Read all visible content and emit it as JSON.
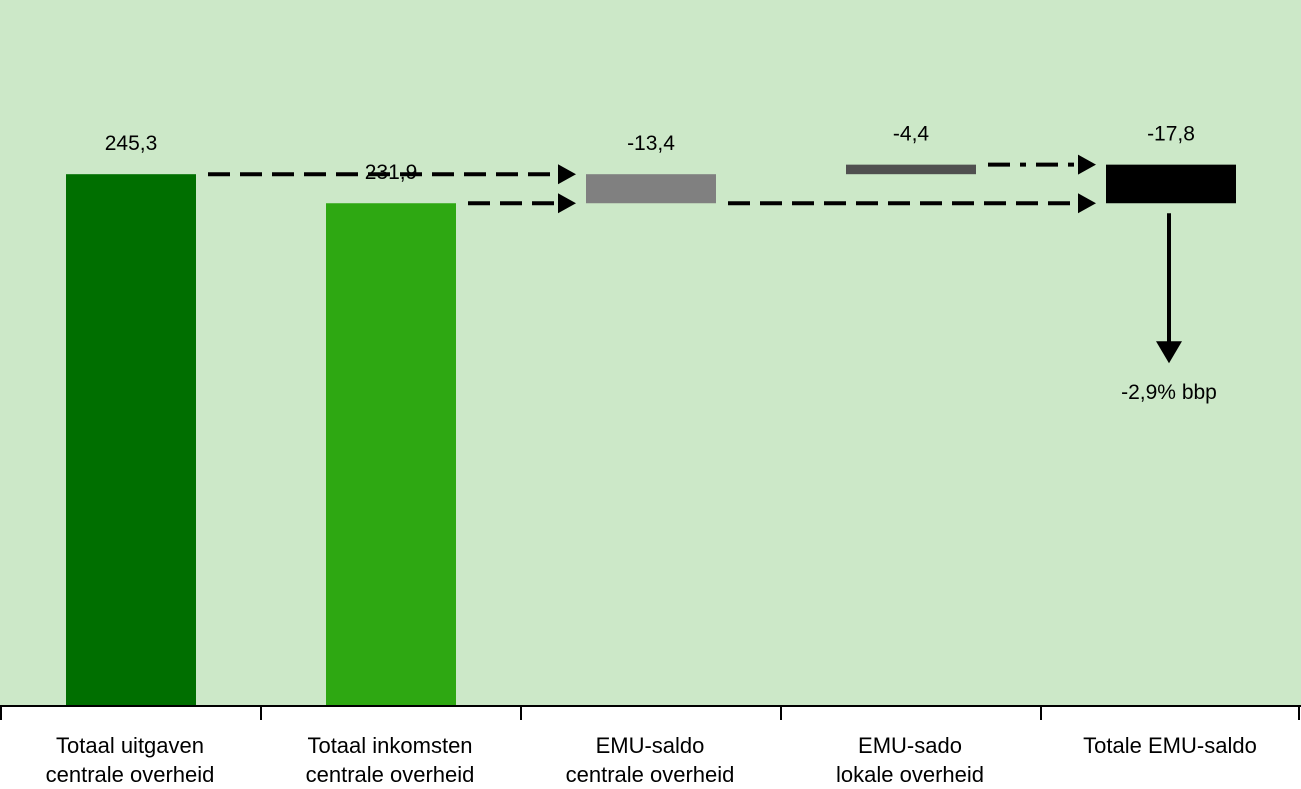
{
  "chart_data": {
    "type": "bar",
    "subtype": "waterfall",
    "background_color": "#cce8c8",
    "categories": [
      [
        "Totaal uitgaven",
        "centrale overheid"
      ],
      [
        "Totaal inkomsten",
        "centrale overheid"
      ],
      [
        "EMU-saldo",
        "centrale overheid"
      ],
      [
        "EMU-sado",
        "lokale overheid"
      ],
      [
        "Totale EMU-saldo"
      ]
    ],
    "bars": [
      {
        "label": "245,3",
        "value": 245.3,
        "base": 0,
        "top": 245.3,
        "color": "#006f00"
      },
      {
        "label": "231,9",
        "value": 231.9,
        "base": 0,
        "top": 231.9,
        "color": "#2ea812"
      },
      {
        "label": "-13,4",
        "value": -13.4,
        "base": 231.9,
        "top": 245.3,
        "color": "#808080"
      },
      {
        "label": "-4,4",
        "value": -4.4,
        "base": 245.3,
        "top": 249.7,
        "color": "#505050"
      },
      {
        "label": "-17,8",
        "value": -17.8,
        "base": 231.9,
        "top": 249.7,
        "color": "#000000"
      }
    ],
    "annotation": "-2,9% bbp",
    "grid": false,
    "legend": "none"
  }
}
